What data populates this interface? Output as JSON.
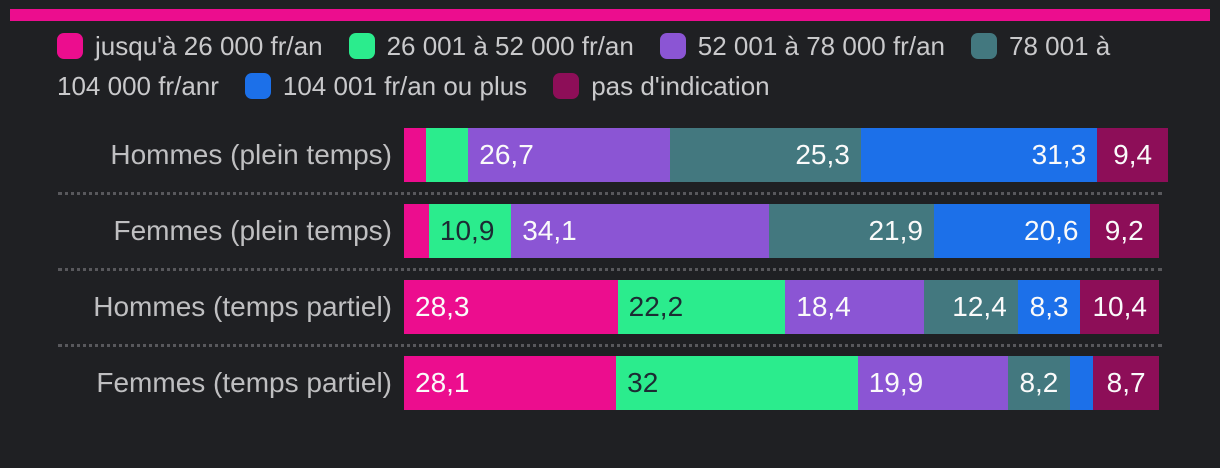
{
  "page": {
    "background": "#1F2023",
    "accent_band_color": "#EC0D8E",
    "legend_text_color": "#C9C9CB",
    "category_text_color": "#BFBFC1",
    "separator_color": "#58585C"
  },
  "chart_data": {
    "type": "bar",
    "orientation": "horizontal",
    "stacked": true,
    "unit": "percent",
    "xlim": [
      0,
      100
    ],
    "legend_position": "top",
    "grid": false,
    "categories": [
      "Hommes (plein temps)",
      "Femmes (plein temps)",
      "Hommes (temps partiel)",
      "Femmes (temps partiel)"
    ],
    "series": [
      {
        "name": "jusqu'à 26 000 fr/an",
        "color": "#EC0D8E",
        "values": [
          1.7,
          3.3,
          28.3,
          28.1
        ],
        "labels": [
          "",
          "",
          "28,3",
          "28,1"
        ],
        "label_color": "#FAFAFA",
        "label_align": "left"
      },
      {
        "name": "26 001 à 52 000 fr/an",
        "color": "#2BEC8D",
        "values": [
          5.6,
          10.9,
          22.2,
          32
        ],
        "labels": [
          "",
          "10,9",
          "22,2",
          "32"
        ],
        "label_color": "#1C2B33",
        "label_align": "left"
      },
      {
        "name": "52 001 à 78 000 fr/an",
        "color": "#8B55D4",
        "values": [
          26.7,
          34.1,
          18.4,
          19.9
        ],
        "labels": [
          "26,7",
          "34,1",
          "18,4",
          "19,9"
        ],
        "label_color": "#FAFAFA",
        "label_align": "left"
      },
      {
        "name": "78 001 à 104 000 fr/anr",
        "color": "#43787F",
        "values": [
          25.3,
          21.9,
          12.4,
          8.2
        ],
        "labels": [
          "25,3",
          "21,9",
          "12,4",
          "8,2"
        ],
        "label_color": "#FAFAFA",
        "label_align": "right"
      },
      {
        "name": "104 001 fr/an ou plus",
        "color": "#1C70E9",
        "values": [
          31.3,
          20.6,
          8.3,
          3.1
        ],
        "labels": [
          "31,3",
          "20,6",
          "8,3",
          ""
        ],
        "label_color": "#FAFAFA",
        "label_align": "right"
      },
      {
        "name": "pas d'indication",
        "color": "#8D0E58",
        "values": [
          9.4,
          9.2,
          10.4,
          8.7
        ],
        "labels": [
          "9,4",
          "9,2",
          "10,4",
          "8,7"
        ],
        "label_color": "#FAFAFA",
        "label_align": "center"
      }
    ]
  }
}
